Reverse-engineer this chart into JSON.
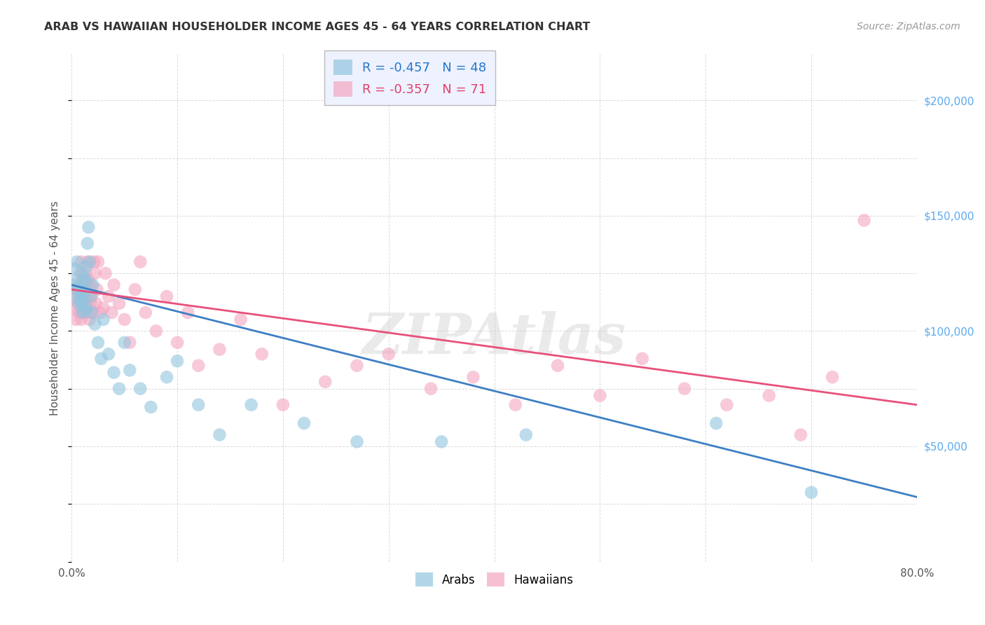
{
  "title": "ARAB VS HAWAIIAN HOUSEHOLDER INCOME AGES 45 - 64 YEARS CORRELATION CHART",
  "source": "Source: ZipAtlas.com",
  "ylabel": "Householder Income Ages 45 - 64 years",
  "xlim": [
    0.0,
    0.8
  ],
  "ylim": [
    0,
    220000
  ],
  "yticks": [
    0,
    50000,
    100000,
    150000,
    200000
  ],
  "ytick_labels": [
    "",
    "$50,000",
    "$100,000",
    "$150,000",
    "$200,000"
  ],
  "arab_R": -0.457,
  "arab_N": 48,
  "hawaiian_R": -0.357,
  "hawaiian_N": 71,
  "arab_color": "#92c5de",
  "hawaiian_color": "#f4a6c0",
  "arab_line_color": "#3d7fc4",
  "hawaiian_line_color": "#e8507a",
  "watermark": "ZIPAtlas",
  "background_color": "#ffffff",
  "grid_color": "#cccccc",
  "title_color": "#333333",
  "source_color": "#999999",
  "arab_line_x0": 0.0,
  "arab_line_y0": 120000,
  "arab_line_x1": 0.8,
  "arab_line_y1": 28000,
  "hawaiian_line_x0": 0.0,
  "hawaiian_line_y0": 118000,
  "hawaiian_line_x1": 0.8,
  "hawaiian_line_y1": 68000,
  "arab_scatter_x": [
    0.002,
    0.003,
    0.004,
    0.005,
    0.006,
    0.006,
    0.007,
    0.008,
    0.008,
    0.009,
    0.01,
    0.01,
    0.011,
    0.011,
    0.012,
    0.012,
    0.013,
    0.013,
    0.014,
    0.014,
    0.015,
    0.016,
    0.017,
    0.018,
    0.019,
    0.02,
    0.022,
    0.025,
    0.028,
    0.03,
    0.035,
    0.04,
    0.045,
    0.05,
    0.055,
    0.065,
    0.075,
    0.09,
    0.1,
    0.12,
    0.14,
    0.17,
    0.22,
    0.27,
    0.35,
    0.43,
    0.61,
    0.7
  ],
  "arab_scatter_y": [
    120000,
    127000,
    122000,
    130000,
    115000,
    118000,
    112000,
    119000,
    113000,
    116000,
    125000,
    108000,
    118000,
    113000,
    123000,
    109000,
    117000,
    122000,
    110000,
    128000,
    138000,
    145000,
    130000,
    115000,
    108000,
    120000,
    103000,
    95000,
    88000,
    105000,
    90000,
    82000,
    75000,
    95000,
    83000,
    75000,
    67000,
    80000,
    87000,
    68000,
    55000,
    68000,
    60000,
    52000,
    52000,
    55000,
    60000,
    30000
  ],
  "hawaiian_scatter_x": [
    0.002,
    0.003,
    0.004,
    0.005,
    0.006,
    0.007,
    0.007,
    0.008,
    0.008,
    0.009,
    0.009,
    0.01,
    0.01,
    0.011,
    0.011,
    0.012,
    0.012,
    0.013,
    0.013,
    0.014,
    0.014,
    0.015,
    0.015,
    0.016,
    0.016,
    0.017,
    0.018,
    0.018,
    0.019,
    0.02,
    0.021,
    0.022,
    0.023,
    0.024,
    0.025,
    0.027,
    0.03,
    0.032,
    0.035,
    0.038,
    0.04,
    0.045,
    0.05,
    0.055,
    0.06,
    0.065,
    0.07,
    0.08,
    0.09,
    0.1,
    0.11,
    0.12,
    0.14,
    0.16,
    0.18,
    0.2,
    0.24,
    0.27,
    0.3,
    0.34,
    0.38,
    0.42,
    0.46,
    0.5,
    0.54,
    0.58,
    0.62,
    0.66,
    0.69,
    0.72,
    0.75
  ],
  "hawaiian_scatter_y": [
    110000,
    115000,
    105000,
    118000,
    112000,
    108000,
    120000,
    115000,
    125000,
    105000,
    130000,
    118000,
    110000,
    122000,
    108000,
    115000,
    120000,
    112000,
    125000,
    110000,
    118000,
    130000,
    108000,
    115000,
    122000,
    105000,
    120000,
    112000,
    115000,
    108000,
    130000,
    125000,
    112000,
    118000,
    130000,
    108000,
    110000,
    125000,
    115000,
    108000,
    120000,
    112000,
    105000,
    95000,
    118000,
    130000,
    108000,
    100000,
    115000,
    95000,
    108000,
    85000,
    92000,
    105000,
    90000,
    68000,
    78000,
    85000,
    90000,
    75000,
    80000,
    68000,
    85000,
    72000,
    88000,
    75000,
    68000,
    72000,
    55000,
    80000,
    148000
  ]
}
